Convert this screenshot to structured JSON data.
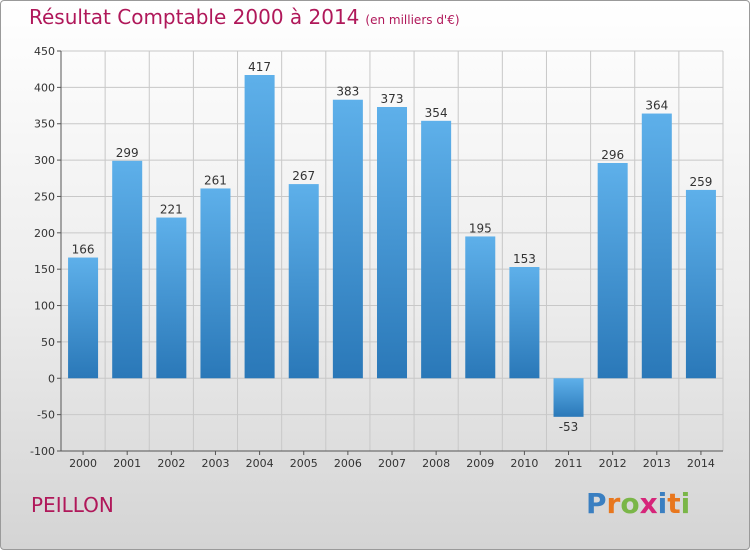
{
  "header": {
    "title": "Résultat Comptable 2000 à 2014",
    "subtitle": "(en milliers d'€)"
  },
  "footer": {
    "city": "PEILLON",
    "brand_letters": [
      "P",
      "r",
      "o",
      "x",
      "i",
      "t",
      "i"
    ],
    "brand_colors": [
      "#3a7fc1",
      "#e8771e",
      "#7ab648",
      "#d6257a",
      "#3a7fc1",
      "#e8771e",
      "#7ab648"
    ]
  },
  "chart_data": {
    "type": "bar",
    "title": "Résultat Comptable 2000 à 2014",
    "subtitle": "(en milliers d'€)",
    "xlabel": "",
    "ylabel": "",
    "categories": [
      "2000",
      "2001",
      "2002",
      "2003",
      "2004",
      "2005",
      "2006",
      "2007",
      "2008",
      "2009",
      "2010",
      "2011",
      "2012",
      "2013",
      "2014"
    ],
    "values": [
      166,
      299,
      221,
      261,
      417,
      267,
      383,
      373,
      354,
      195,
      153,
      -53,
      296,
      364,
      259
    ],
    "data_labels": [
      "166",
      "299",
      "221",
      "261",
      "417",
      "267",
      "383",
      "373",
      "354",
      "195",
      "153",
      "-53",
      "296",
      "364",
      "259"
    ],
    "ylim": [
      -100,
      450
    ],
    "yticks": [
      -100,
      -50,
      0,
      50,
      100,
      150,
      200,
      250,
      300,
      350,
      400,
      450
    ],
    "ytick_labels": [
      "-100",
      "-50",
      "0",
      "50",
      "100",
      "150",
      "200",
      "250",
      "300",
      "350",
      "400",
      "450"
    ],
    "grid": true,
    "legend": "none",
    "bar_color_light": "#5eb0ea",
    "bar_color_dark": "#2a78b8",
    "title_color": "#b0185a"
  }
}
